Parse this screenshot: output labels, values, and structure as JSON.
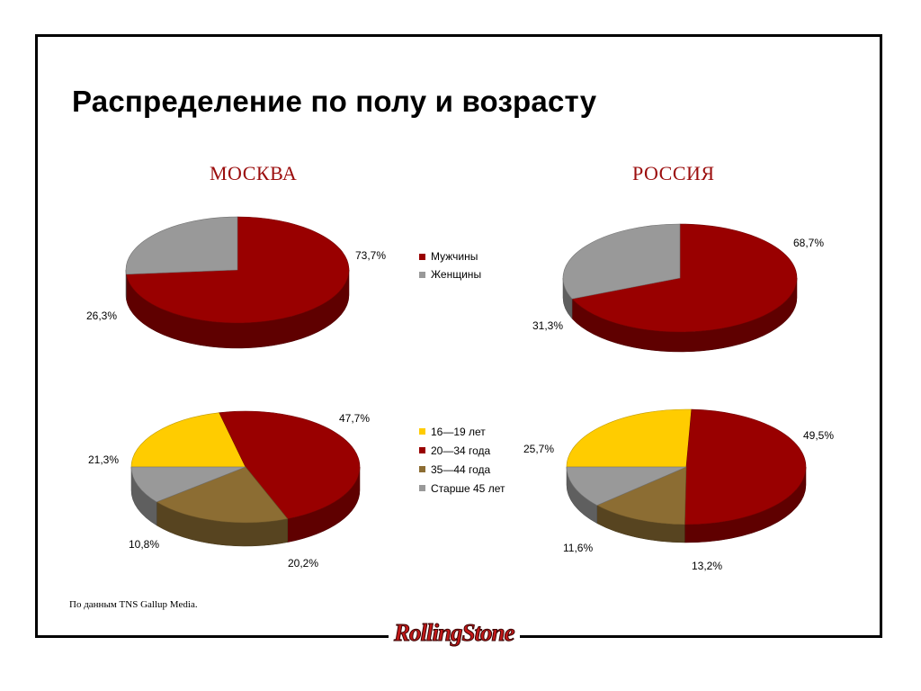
{
  "title": "Распределение по полу и возрасту",
  "regions": {
    "moscow": "МОСКВА",
    "russia": "РОССИЯ"
  },
  "legend_sex": [
    {
      "label": "Мужчины",
      "color": "#990000"
    },
    {
      "label": "Женщины",
      "color": "#999999"
    }
  ],
  "legend_age": [
    {
      "label": "16—19 лет",
      "color": "#ffcc00"
    },
    {
      "label": "20—34 года",
      "color": "#990000"
    },
    {
      "label": "35—44 года",
      "color": "#8c6d33"
    },
    {
      "label": "Старше 45 лет",
      "color": "#999999"
    }
  ],
  "source": "По данным TNS Gallup Media.",
  "logo": "RollingStone",
  "chart_data": [
    {
      "type": "pie",
      "title": "МОСКВА",
      "categories": [
        "Мужчины",
        "Женщины"
      ],
      "values": [
        73.7,
        26.3
      ],
      "labels": [
        "73,7%",
        "26,3%"
      ]
    },
    {
      "type": "pie",
      "title": "РОССИЯ",
      "categories": [
        "Мужчины",
        "Женщины"
      ],
      "values": [
        68.7,
        31.3
      ],
      "labels": [
        "68,7%",
        "31,3%"
      ]
    },
    {
      "type": "pie",
      "title": "МОСКВА",
      "categories": [
        "16—19 лет",
        "20—34 года",
        "35—44 года",
        "Старше 45 лет"
      ],
      "values": [
        21.3,
        47.7,
        20.2,
        10.8
      ],
      "labels": [
        "21,3%",
        "47,7%",
        "20,2%",
        "10,8%"
      ]
    },
    {
      "type": "pie",
      "title": "РОССИЯ",
      "categories": [
        "16—19 лет",
        "20—34 года",
        "35—44 года",
        "Старше 45 лет"
      ],
      "values": [
        25.7,
        49.5,
        13.2,
        11.6
      ],
      "labels": [
        "25,7%",
        "49,5%",
        "13,2%",
        "11,6%"
      ]
    }
  ]
}
